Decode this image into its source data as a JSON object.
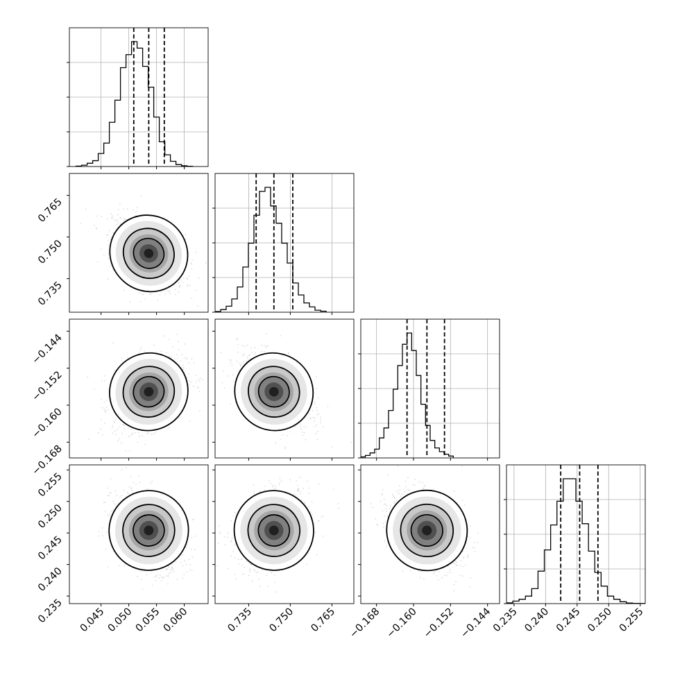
{
  "chart_data": {
    "type": "corner",
    "grid": true,
    "quantile_line_style": "dashed",
    "parameters": [
      {
        "range": [
          0.0393,
          0.0643
        ],
        "ticks": [
          0.045,
          0.05,
          0.055,
          0.06
        ],
        "tick_labels": [
          "0.045",
          "0.050",
          "0.055",
          "0.060"
        ],
        "quantiles": [
          0.0509,
          0.0536,
          0.0564
        ],
        "histogram": {
          "edges_start": 0.0405,
          "bin_width": 0.001,
          "counts": [
            0.3,
            1,
            2.5,
            4.5,
            10,
            18,
            34,
            51,
            76,
            86,
            96,
            91,
            77,
            61,
            38,
            19,
            9,
            4,
            1.5,
            0.6,
            0.2
          ]
        }
      },
      {
        "range": [
          0.7229,
          0.7729
        ],
        "ticks": [
          0.735,
          0.75,
          0.765
        ],
        "tick_labels": [
          "0.735",
          "0.750",
          "0.765"
        ],
        "quantiles": [
          0.7377,
          0.7441,
          0.7509
        ],
        "histogram": {
          "edges_start": 0.7229,
          "bin_width": 0.002,
          "counts": [
            0.5,
            2,
            4.5,
            10,
            19,
            34,
            52,
            73,
            91,
            94,
            80,
            67,
            52,
            37,
            22,
            13,
            7,
            4,
            1.5,
            0.8
          ]
        }
      },
      {
        "range": [
          -0.1714,
          -0.1414
        ],
        "ticks": [
          -0.168,
          -0.16,
          -0.152,
          -0.144
        ],
        "tick_labels": [
          "−0.168",
          "−0.160",
          "−0.152",
          "−0.144"
        ],
        "quantiles": [
          -0.1614,
          -0.1571,
          -0.1533
        ],
        "histogram": {
          "edges_start": -0.1714,
          "bin_width": 0.001,
          "counts": [
            0.8,
            2,
            4,
            7,
            16,
            24,
            38,
            55,
            74,
            91,
            100,
            86,
            66,
            43,
            26,
            14,
            8,
            5,
            3,
            1.5
          ]
        }
      },
      {
        "range": [
          0.2338,
          0.2558
        ],
        "ticks": [
          0.235,
          0.24,
          0.245,
          0.25,
          0.255
        ],
        "tick_labels": [
          "0.235",
          "0.240",
          "0.245",
          "0.250",
          "0.255"
        ],
        "quantiles": [
          0.2424,
          0.2454,
          0.2483
        ],
        "histogram": {
          "edges_start": 0.2338,
          "bin_width": 0.001,
          "counts": [
            0.6,
            2,
            3.5,
            6,
            12,
            26,
            43,
            63,
            82,
            100,
            100,
            82,
            64,
            42,
            25,
            14,
            6,
            3.5,
            1.5,
            0.5,
            0.2,
            0.1
          ]
        }
      }
    ],
    "pairs": [
      {
        "x": 0,
        "y": 1,
        "center": [
          0.0536,
          0.7441
        ],
        "sigma": [
          0.0031,
          0.0062
        ],
        "corr": -0.4,
        "levels": [
          2.3,
          1.5,
          0.9
        ]
      },
      {
        "x": 0,
        "y": 2,
        "center": [
          0.0536,
          -0.1571
        ],
        "sigma": [
          0.0031,
          0.0038
        ],
        "corr": 0.35,
        "levels": [
          2.3,
          1.5,
          0.9
        ]
      },
      {
        "x": 1,
        "y": 2,
        "center": [
          0.7441,
          -0.1571
        ],
        "sigma": [
          0.0062,
          0.0038
        ],
        "corr": -0.45,
        "levels": [
          2.3,
          1.5,
          0.9
        ]
      },
      {
        "x": 0,
        "y": 3,
        "center": [
          0.0536,
          0.2454
        ],
        "sigma": [
          0.0031,
          0.0029
        ],
        "corr": -0.3,
        "levels": [
          2.3,
          1.5,
          0.9
        ]
      },
      {
        "x": 1,
        "y": 3,
        "center": [
          0.7441,
          0.2454
        ],
        "sigma": [
          0.0062,
          0.0029
        ],
        "corr": 0.3,
        "levels": [
          2.3,
          1.5,
          0.9
        ]
      },
      {
        "x": 2,
        "y": 3,
        "center": [
          -0.1571,
          0.2454
        ],
        "sigma": [
          0.0038,
          0.0029
        ],
        "corr": -0.35,
        "levels": [
          2.3,
          1.5,
          0.9
        ]
      }
    ]
  }
}
